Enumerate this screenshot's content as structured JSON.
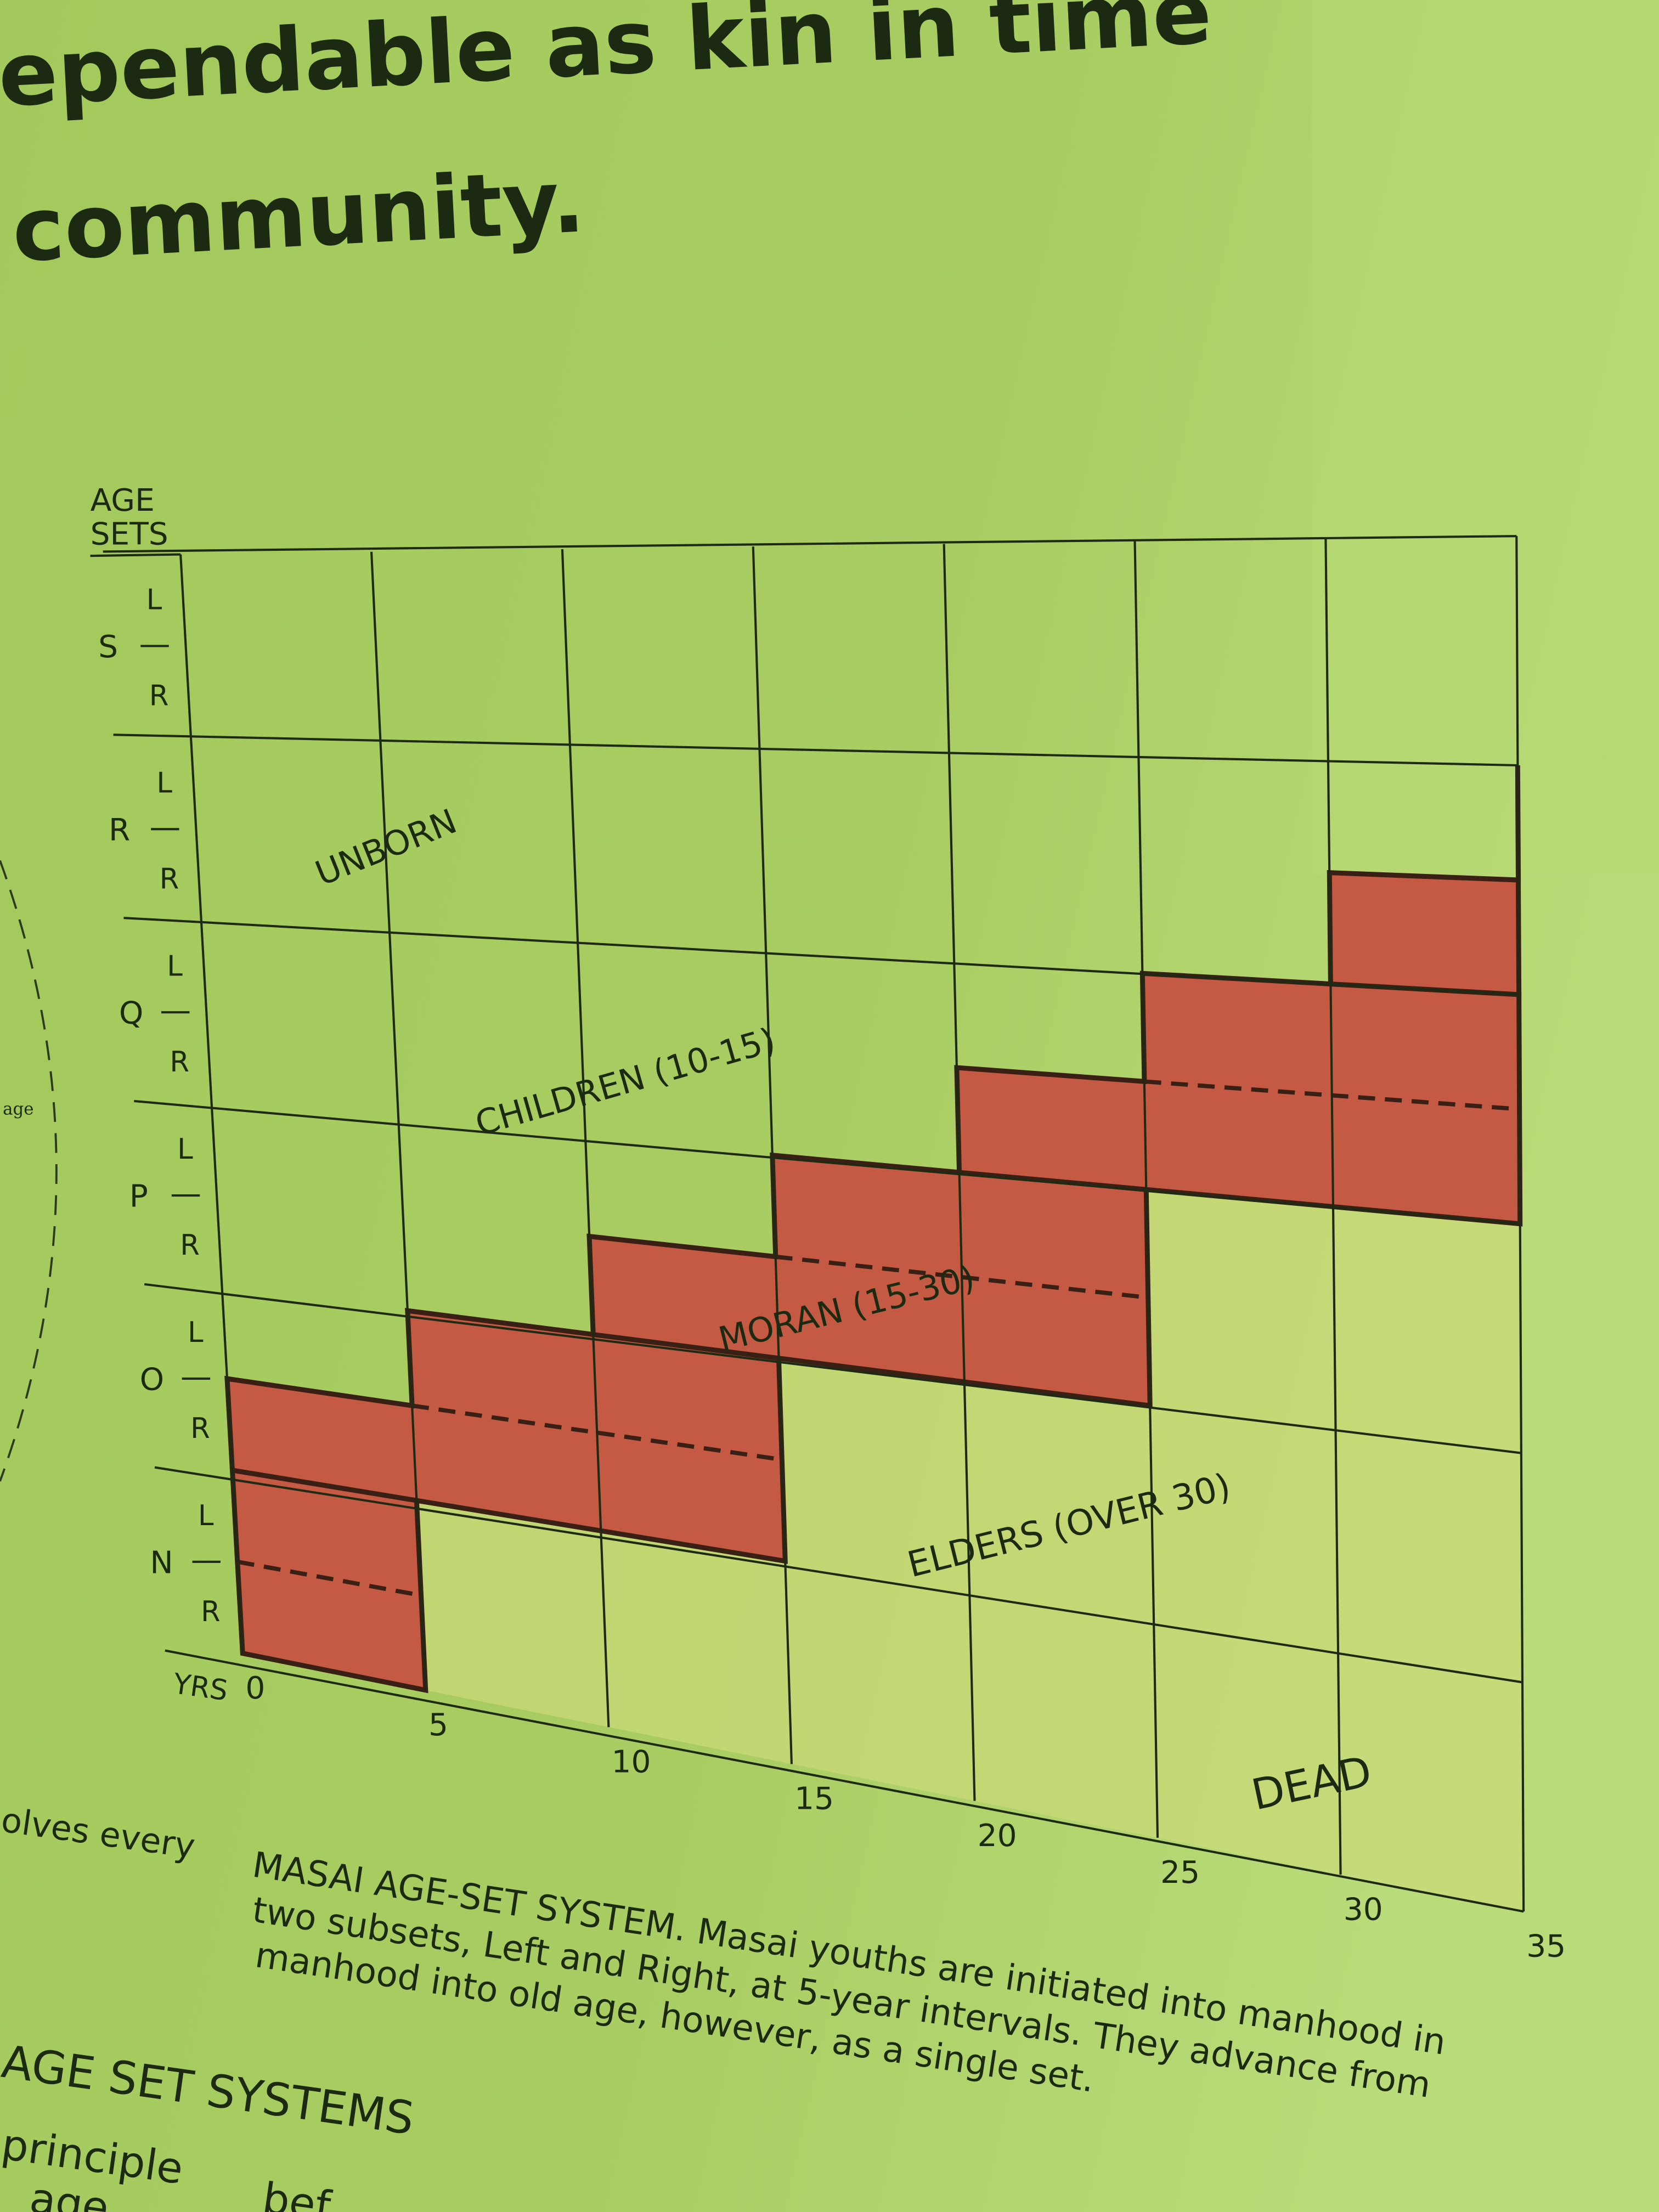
{
  "heading": {
    "lines": [
      "ependable as kin in time",
      "community."
    ]
  },
  "diagram": {
    "y_axis_title": [
      "AGE",
      "SETS"
    ],
    "age_sets": [
      {
        "name": "S",
        "subsets": [
          "L",
          "R"
        ]
      },
      {
        "name": "R",
        "subsets": [
          "L",
          "R"
        ]
      },
      {
        "name": "Q",
        "subsets": [
          "L",
          "R"
        ]
      },
      {
        "name": "P",
        "subsets": [
          "L",
          "R"
        ]
      },
      {
        "name": "O",
        "subsets": [
          "L",
          "R"
        ]
      },
      {
        "name": "N",
        "subsets": [
          "L",
          "R"
        ]
      }
    ],
    "x_axis_label": "YRS",
    "x_ticks": [
      0,
      5,
      10,
      15,
      20,
      25,
      30,
      35
    ],
    "regions": [
      "UNBORN",
      "CHILDREN (10-15)",
      "MORAN (15-30)",
      "ELDERS (OVER 30)",
      "DEAD"
    ]
  },
  "caption": [
    "MASAI AGE-SET SYSTEM. Masai youths are initiated into manhood in",
    "two subsets, Left and Right, at 5-year intervals. They advance from",
    "manhood into old age, however, as a single set."
  ],
  "side_text": [
    "age",
    "olves every",
    "AGE SET SYSTEMS",
    "principle",
    "age",
    "bef"
  ]
}
